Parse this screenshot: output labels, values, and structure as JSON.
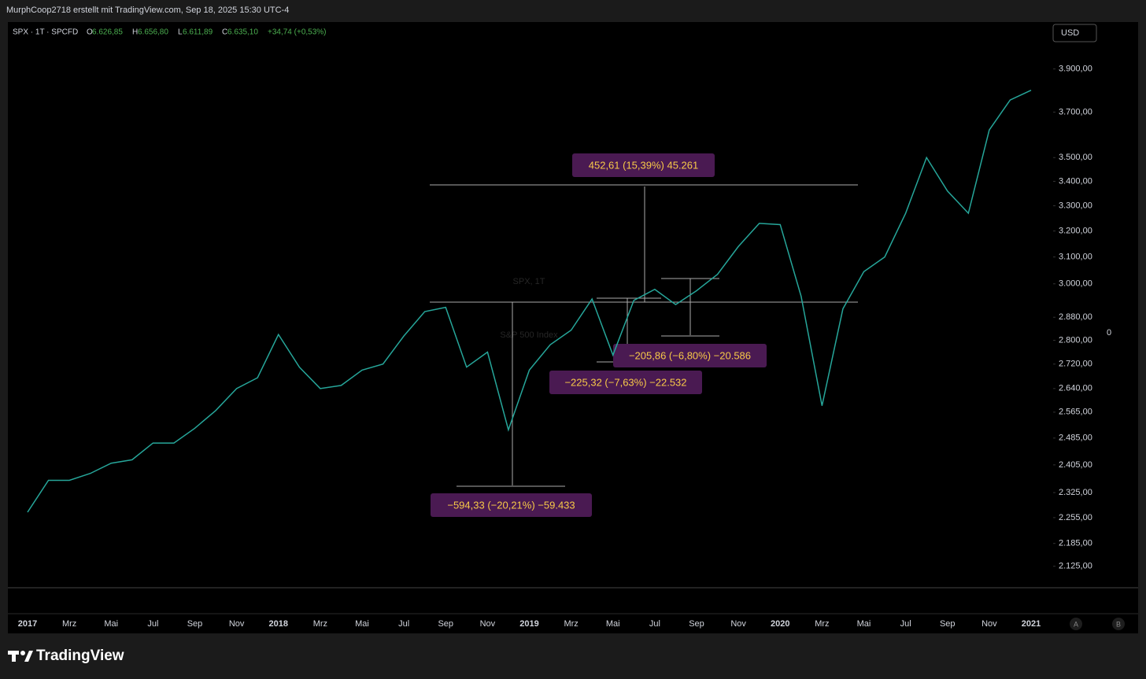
{
  "header": {
    "credit": "MurphCoop2718 erstellt mit TradingView.com, Sep 18, 2025 15:30 UTC-4"
  },
  "legend": {
    "symbol": "SPX · 1T · SPCFD",
    "o_label": "O",
    "o": "6.626,85",
    "h_label": "H",
    "h": "6.656,80",
    "l_label": "L",
    "l": "6.611,89",
    "c_label": "C",
    "c": "6.635,10",
    "change": "+34,74 (+0,53%)"
  },
  "watermark": {
    "title": "SPX, 1T",
    "subtitle": "S&P 500 Index"
  },
  "controls": {
    "currency": "USD",
    "zero": "0",
    "a": "A",
    "b": "B"
  },
  "footer": {
    "brand": "TradingView"
  },
  "annotations": [
    {
      "text": "452,61 (15,39%) 45.261"
    },
    {
      "text": "−205,86 (−6,80%) −20.586"
    },
    {
      "text": "−225,32 (−7,63%) −22.532"
    },
    {
      "text": "−594,33 (−20,21%) −59.433"
    }
  ],
  "chart_data": {
    "type": "line",
    "log_scale": true,
    "color": "#26a69a",
    "categories": [
      "2017",
      null,
      "Mrz",
      null,
      "Mai",
      null,
      "Jul",
      null,
      "Sep",
      null,
      "Nov",
      null,
      "2018",
      null,
      "Mrz",
      null,
      "Mai",
      null,
      "Jul",
      null,
      "Sep",
      null,
      "Nov",
      null,
      "2019",
      null,
      "Mrz",
      null,
      "Mai",
      null,
      "Jul",
      null,
      "Sep",
      null,
      "Nov",
      null,
      "2020",
      null,
      "Mrz",
      null,
      "Mai",
      null,
      "Jul",
      null,
      "Sep",
      null,
      "Nov",
      null,
      "2021"
    ],
    "values": [
      2270,
      2360,
      2360,
      2380,
      2410,
      2420,
      2470,
      2470,
      2515,
      2570,
      2640,
      2675,
      2820,
      2710,
      2640,
      2650,
      2700,
      2720,
      2815,
      2900,
      2915,
      2710,
      2760,
      2510,
      2700,
      2785,
      2835,
      2945,
      2750,
      2940,
      2980,
      2925,
      2975,
      3035,
      3140,
      3230,
      3225,
      2955,
      2585,
      2910,
      3045,
      3100,
      3270,
      3500,
      3360,
      3270,
      3620,
      3755,
      3800
    ],
    "ylim": [
      2070,
      4130
    ],
    "yticks": [
      {
        "value": 2125,
        "label": "2.125,00"
      },
      {
        "value": 2185,
        "label": "2.185,00"
      },
      {
        "value": 2255,
        "label": "2.255,00"
      },
      {
        "value": 2325,
        "label": "2.325,00"
      },
      {
        "value": 2405,
        "label": "2.405,00"
      },
      {
        "value": 2485,
        "label": "2.485,00"
      },
      {
        "value": 2565,
        "label": "2.565,00"
      },
      {
        "value": 2640,
        "label": "2.640,00"
      },
      {
        "value": 2720,
        "label": "2.720,00"
      },
      {
        "value": 2800,
        "label": "2.800,00"
      },
      {
        "value": 2880,
        "label": "2.880,00"
      },
      {
        "value": 3000,
        "label": "3.000,00"
      },
      {
        "value": 3100,
        "label": "3.100,00"
      },
      {
        "value": 3200,
        "label": "3.200,00"
      },
      {
        "value": 3300,
        "label": "3.300,00"
      },
      {
        "value": 3400,
        "label": "3.400,00"
      },
      {
        "value": 3500,
        "label": "3.500,00"
      },
      {
        "value": 3700,
        "label": "3.700,00"
      },
      {
        "value": 3900,
        "label": "3.900,00"
      }
    ]
  }
}
